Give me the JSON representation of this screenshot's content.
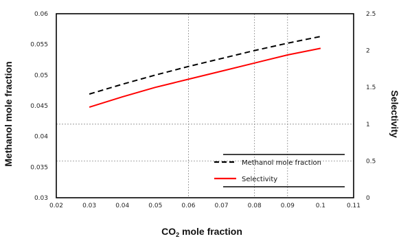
{
  "chart_data": {
    "type": "line",
    "xlabel": "CO₂ mole fraction",
    "xlabel_parts": {
      "base": "CO",
      "sub": "2",
      "rest": " mole fraction"
    },
    "ylabel_left": "Methanol mole fraction",
    "ylabel_right": "Selectivity",
    "x_ticks": [
      "0.02",
      "0.03",
      "0.04",
      "0.05",
      "0.06",
      "0.07",
      "0.08",
      "0.09",
      "0.1",
      "0.11"
    ],
    "xlim": [
      0.02,
      0.11
    ],
    "y_left_ticks": [
      "0.03",
      "0.035",
      "0.04",
      "0.045",
      "0.05",
      "0.055",
      "0.06"
    ],
    "ylim_left": [
      0.03,
      0.06
    ],
    "y_right_ticks": [
      "0",
      "0.5",
      "1",
      "1.5",
      "2",
      "2.5"
    ],
    "ylim_right": [
      0,
      2.5
    ],
    "grid": {
      "vertical_x": [
        0.06,
        0.08,
        0.09
      ],
      "horizontal_y_left": [
        0.036,
        0.042
      ]
    },
    "series": [
      {
        "name": "Methanol mole fraction",
        "axis": "left",
        "style": "dashed",
        "color": "#000000",
        "x": [
          0.03,
          0.04,
          0.05,
          0.06,
          0.07,
          0.08,
          0.09,
          0.1
        ],
        "y": [
          0.0469,
          0.0485,
          0.05,
          0.0514,
          0.0527,
          0.054,
          0.0552,
          0.0563
        ]
      },
      {
        "name": "Selectivity",
        "axis": "right",
        "style": "solid",
        "color": "#ff0000",
        "x": [
          0.03,
          0.04,
          0.05,
          0.06,
          0.07,
          0.08,
          0.09,
          0.1
        ],
        "y": [
          1.23,
          1.37,
          1.5,
          1.61,
          1.72,
          1.83,
          1.94,
          2.03
        ]
      }
    ],
    "legend": {
      "position": "bottom-right",
      "entries": [
        "Methanol mole fraction",
        "Selectivity"
      ]
    }
  }
}
